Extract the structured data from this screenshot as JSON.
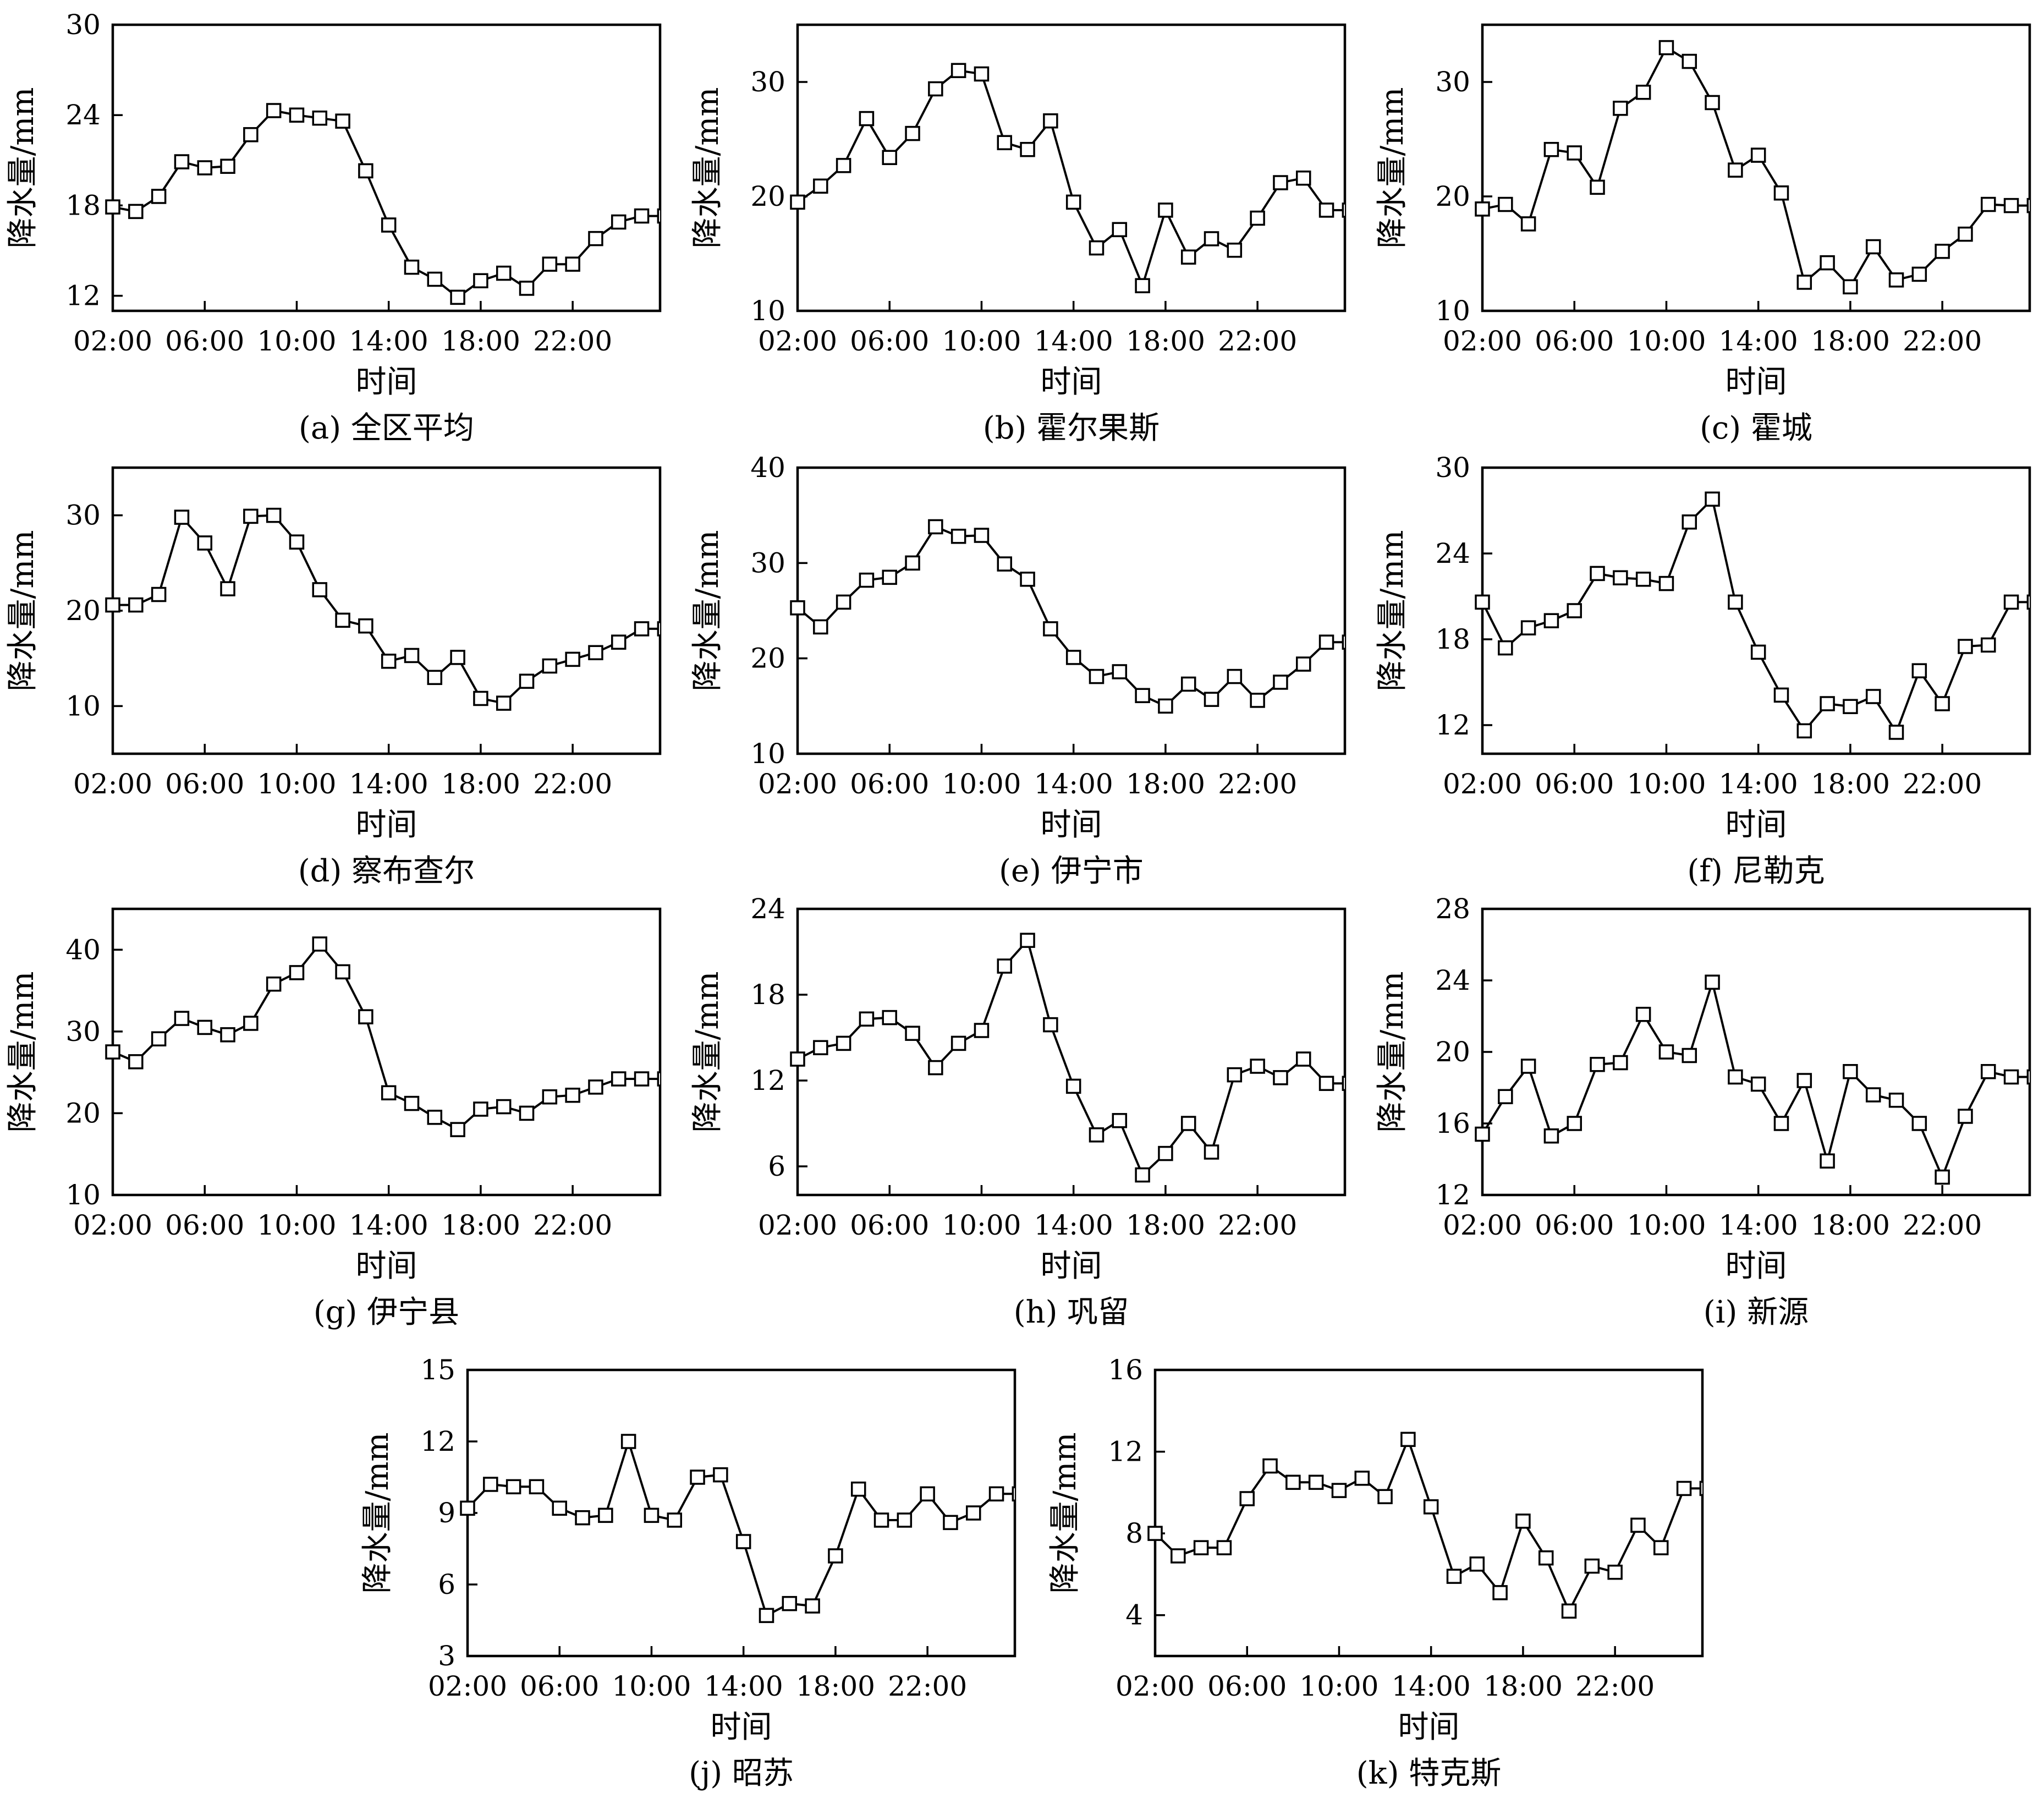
{
  "x_axis": {
    "label": "时间",
    "tick_labels": [
      "02:00",
      "06:00",
      "10:00",
      "14:00",
      "18:00",
      "22:00"
    ]
  },
  "y_axis_label": "降水量/mm",
  "chart_data": [
    {
      "type": "line",
      "caption": "(a) 全区平均",
      "xlabel": "时间",
      "ylabel": "降水量/mm",
      "x": [
        1,
        2,
        3,
        4,
        5,
        6,
        7,
        8,
        9,
        10,
        11,
        12,
        13,
        14,
        15,
        16,
        17,
        18,
        19,
        20,
        21,
        22,
        23,
        24,
        25
      ],
      "x_range": [
        1,
        24.8
      ],
      "ylim": [
        11,
        30
      ],
      "yticks": [
        12,
        18,
        24,
        30
      ],
      "grid": false,
      "values": [
        17.9,
        17.6,
        18.6,
        20.9,
        20.5,
        20.6,
        22.7,
        24.3,
        24.0,
        23.8,
        23.6,
        20.3,
        16.7,
        13.9,
        13.1,
        11.9,
        13.0,
        13.5,
        12.5,
        14.1,
        14.1,
        15.8,
        16.9,
        17.3,
        17.3
      ]
    },
    {
      "type": "line",
      "caption": "(b) 霍尔果斯",
      "xlabel": "时间",
      "ylabel": "降水量/mm",
      "x": [
        1,
        2,
        3,
        4,
        5,
        6,
        7,
        8,
        9,
        10,
        11,
        12,
        13,
        14,
        15,
        16,
        17,
        18,
        19,
        20,
        21,
        22,
        23,
        24,
        25
      ],
      "x_range": [
        1,
        24.8
      ],
      "ylim": [
        10,
        35
      ],
      "yticks": [
        10,
        20,
        30
      ],
      "grid": false,
      "values": [
        19.5,
        20.9,
        22.7,
        26.8,
        23.4,
        25.5,
        29.4,
        31.0,
        30.7,
        24.7,
        24.1,
        26.6,
        19.5,
        15.5,
        17.1,
        12.2,
        18.8,
        14.7,
        16.3,
        15.3,
        18.1,
        21.2,
        21.6,
        18.8,
        18.8
      ]
    },
    {
      "type": "line",
      "caption": "(c) 霍城",
      "xlabel": "时间",
      "ylabel": "降水量/mm",
      "x": [
        1,
        2,
        3,
        4,
        5,
        6,
        7,
        8,
        9,
        10,
        11,
        12,
        13,
        14,
        15,
        16,
        17,
        18,
        19,
        20,
        21,
        22,
        23,
        24,
        25
      ],
      "x_range": [
        1,
        24.8
      ],
      "ylim": [
        10,
        35
      ],
      "yticks": [
        10,
        20,
        30
      ],
      "grid": false,
      "values": [
        18.9,
        19.3,
        17.6,
        24.1,
        23.8,
        20.8,
        27.7,
        29.1,
        33.0,
        31.8,
        28.2,
        22.3,
        23.6,
        20.3,
        12.5,
        14.2,
        12.1,
        15.6,
        12.7,
        13.2,
        15.2,
        16.7,
        19.3,
        19.2,
        19.2
      ]
    },
    {
      "type": "line",
      "caption": "(d) 察布查尔",
      "xlabel": "时间",
      "ylabel": "降水量/mm",
      "x": [
        1,
        2,
        3,
        4,
        5,
        6,
        7,
        8,
        9,
        10,
        11,
        12,
        13,
        14,
        15,
        16,
        17,
        18,
        19,
        20,
        21,
        22,
        23,
        24,
        25
      ],
      "x_range": [
        1,
        24.8
      ],
      "ylim": [
        5,
        35
      ],
      "yticks": [
        10,
        20,
        30
      ],
      "grid": false,
      "values": [
        20.6,
        20.6,
        21.7,
        29.8,
        27.1,
        22.3,
        29.9,
        30.0,
        27.2,
        22.2,
        19.0,
        18.4,
        14.7,
        15.3,
        13.0,
        15.1,
        10.8,
        10.3,
        12.6,
        14.2,
        14.9,
        15.6,
        16.7,
        18.1,
        18.1
      ]
    },
    {
      "type": "line",
      "caption": "(e) 伊宁市",
      "xlabel": "时间",
      "ylabel": "降水量/mm",
      "x": [
        1,
        2,
        3,
        4,
        5,
        6,
        7,
        8,
        9,
        10,
        11,
        12,
        13,
        14,
        15,
        16,
        17,
        18,
        19,
        20,
        21,
        22,
        23,
        24,
        25
      ],
      "x_range": [
        1,
        24.8
      ],
      "ylim": [
        10,
        40
      ],
      "yticks": [
        10,
        20,
        30,
        40
      ],
      "grid": false,
      "values": [
        25.3,
        23.3,
        25.9,
        28.2,
        28.5,
        30.0,
        33.8,
        32.8,
        32.9,
        29.9,
        28.3,
        23.1,
        20.1,
        18.1,
        18.6,
        16.1,
        15.0,
        17.3,
        15.7,
        18.1,
        15.6,
        17.5,
        19.4,
        21.7,
        21.7
      ]
    },
    {
      "type": "line",
      "caption": "(f) 尼勒克",
      "xlabel": "时间",
      "ylabel": "降水量/mm",
      "x": [
        1,
        2,
        3,
        4,
        5,
        6,
        7,
        8,
        9,
        10,
        11,
        12,
        13,
        14,
        15,
        16,
        17,
        18,
        19,
        20,
        21,
        22,
        23,
        24,
        25
      ],
      "x_range": [
        1,
        24.8
      ],
      "ylim": [
        10,
        30
      ],
      "yticks": [
        12,
        18,
        24,
        30
      ],
      "grid": false,
      "values": [
        20.6,
        17.4,
        18.8,
        19.3,
        20.0,
        22.6,
        22.3,
        22.2,
        21.9,
        26.2,
        27.8,
        20.6,
        17.1,
        14.1,
        11.6,
        13.5,
        13.3,
        14.0,
        11.5,
        15.8,
        13.5,
        17.5,
        17.6,
        20.6,
        20.6
      ]
    },
    {
      "type": "line",
      "caption": "(g) 伊宁县",
      "xlabel": "时间",
      "ylabel": "降水量/mm",
      "x": [
        1,
        2,
        3,
        4,
        5,
        6,
        7,
        8,
        9,
        10,
        11,
        12,
        13,
        14,
        15,
        16,
        17,
        18,
        19,
        20,
        21,
        22,
        23,
        24,
        25
      ],
      "x_range": [
        1,
        24.8
      ],
      "ylim": [
        10,
        45
      ],
      "yticks": [
        10,
        20,
        30,
        40
      ],
      "grid": false,
      "values": [
        27.5,
        26.3,
        29.1,
        31.6,
        30.5,
        29.6,
        31.0,
        35.8,
        37.2,
        40.7,
        37.3,
        31.8,
        22.5,
        21.2,
        19.5,
        18.0,
        20.5,
        20.8,
        20.0,
        22.0,
        22.2,
        23.2,
        24.2,
        24.2,
        24.2
      ]
    },
    {
      "type": "line",
      "caption": "(h) 巩留",
      "xlabel": "时间",
      "ylabel": "降水量/mm",
      "x": [
        1,
        2,
        3,
        4,
        5,
        6,
        7,
        8,
        9,
        10,
        11,
        12,
        13,
        14,
        15,
        16,
        17,
        18,
        19,
        20,
        21,
        22,
        23,
        24,
        25
      ],
      "x_range": [
        1,
        24.8
      ],
      "ylim": [
        4,
        24
      ],
      "yticks": [
        6,
        12,
        18,
        24
      ],
      "grid": false,
      "values": [
        13.5,
        14.3,
        14.6,
        16.3,
        16.4,
        15.3,
        12.9,
        14.6,
        15.5,
        20.0,
        21.8,
        15.9,
        11.6,
        8.2,
        9.2,
        5.4,
        6.9,
        9.0,
        7.0,
        12.4,
        13.0,
        12.2,
        13.5,
        11.8,
        11.8
      ]
    },
    {
      "type": "line",
      "caption": "(i) 新源",
      "xlabel": "时间",
      "ylabel": "降水量/mm",
      "x": [
        1,
        2,
        3,
        4,
        5,
        6,
        7,
        8,
        9,
        10,
        11,
        12,
        13,
        14,
        15,
        16,
        17,
        18,
        19,
        20,
        21,
        22,
        23,
        24,
        25
      ],
      "x_range": [
        1,
        24.8
      ],
      "ylim": [
        12,
        28
      ],
      "yticks": [
        12,
        16,
        20,
        24,
        28
      ],
      "grid": false,
      "values": [
        15.4,
        17.5,
        19.2,
        15.3,
        16.0,
        19.3,
        19.4,
        22.1,
        20.0,
        19.8,
        23.9,
        18.6,
        18.2,
        16.0,
        18.4,
        13.9,
        18.9,
        17.6,
        17.3,
        16.0,
        13.0,
        16.4,
        18.9,
        18.6,
        18.6
      ]
    },
    {
      "type": "line",
      "caption": "(j) 昭苏",
      "xlabel": "时间",
      "ylabel": "降水量/mm",
      "x": [
        1,
        2,
        3,
        4,
        5,
        6,
        7,
        8,
        9,
        10,
        11,
        12,
        13,
        14,
        15,
        16,
        17,
        18,
        19,
        20,
        21,
        22,
        23,
        24,
        25
      ],
      "x_range": [
        1,
        24.8
      ],
      "ylim": [
        3,
        15
      ],
      "yticks": [
        3,
        6,
        9,
        12,
        15
      ],
      "grid": false,
      "values": [
        9.2,
        10.2,
        10.1,
        10.1,
        9.2,
        8.8,
        8.9,
        12.0,
        8.9,
        8.7,
        10.5,
        10.6,
        7.8,
        4.7,
        5.2,
        5.1,
        7.2,
        10.0,
        8.7,
        8.7,
        9.8,
        8.6,
        9.0,
        9.8,
        9.8
      ]
    },
    {
      "type": "line",
      "caption": "(k) 特克斯",
      "xlabel": "时间",
      "ylabel": "降水量/mm",
      "x": [
        1,
        2,
        3,
        4,
        5,
        6,
        7,
        8,
        9,
        10,
        11,
        12,
        13,
        14,
        15,
        16,
        17,
        18,
        19,
        20,
        21,
        22,
        23,
        24,
        25
      ],
      "x_range": [
        1,
        24.8
      ],
      "ylim": [
        2,
        16
      ],
      "yticks": [
        4,
        8,
        12,
        16
      ],
      "grid": false,
      "values": [
        8.0,
        6.9,
        7.3,
        7.3,
        9.7,
        11.3,
        10.5,
        10.5,
        10.1,
        10.7,
        9.8,
        12.6,
        9.3,
        5.9,
        6.5,
        5.1,
        8.6,
        6.8,
        4.2,
        6.4,
        6.1,
        8.4,
        7.3,
        10.2,
        10.2
      ]
    }
  ]
}
